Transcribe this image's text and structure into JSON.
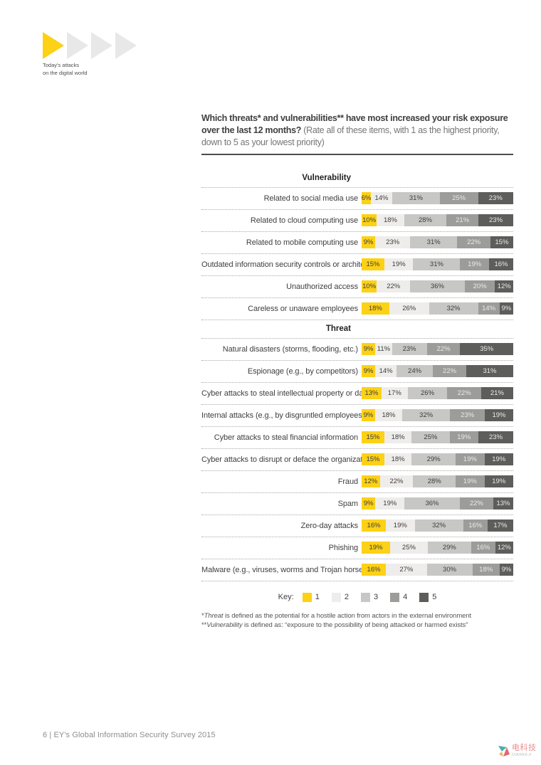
{
  "page": {
    "tagline": [
      "Today's attacks",
      "on the digital world"
    ],
    "footer": "6 | EY's Global Information Security Survey 2015"
  },
  "question": {
    "bold": "Which threats* and vulnerabilities** have most increased your risk exposure over the last 12 months?",
    "regular": " (Rate all of these items, with 1 as the highest priority, down to 5 as your lowest priority)"
  },
  "chart_data": {
    "type": "bar",
    "subtype": "horizontal-stacked-100percent",
    "unit": "%",
    "key": {
      "label": "Key:",
      "entries": [
        "1",
        "2",
        "3",
        "4",
        "5"
      ]
    },
    "segment_colors": [
      "#fcd116",
      "#eeedeb",
      "#c7c7c5",
      "#9c9c9a",
      "#5d5d5b"
    ],
    "segment_text_colors": [
      "#3d3d3d",
      "#3d3d3d",
      "#3d3d3d",
      "#eaeaea",
      "#eaeaea"
    ],
    "sections": [
      {
        "title": "Vulnerability",
        "rows": [
          {
            "label": "Related to social media use",
            "values": [
              6,
              14,
              31,
              25,
              23
            ]
          },
          {
            "label": "Related to cloud computing use",
            "values": [
              10,
              18,
              28,
              21,
              23
            ]
          },
          {
            "label": "Related to mobile computing use",
            "values": [
              9,
              23,
              31,
              22,
              15
            ]
          },
          {
            "label": "Outdated information security controls or architecture",
            "values": [
              15,
              19,
              31,
              19,
              16
            ]
          },
          {
            "label": "Unauthorized access",
            "values": [
              10,
              22,
              36,
              20,
              12
            ]
          },
          {
            "label": "Careless or unaware employees",
            "values": [
              18,
              26,
              32,
              14,
              9
            ]
          }
        ]
      },
      {
        "title": "Threat",
        "rows": [
          {
            "label": "Natural disasters (storms, flooding, etc.)",
            "values": [
              9,
              11,
              23,
              22,
              35
            ]
          },
          {
            "label": "Espionage (e.g., by competitors)",
            "values": [
              9,
              14,
              24,
              22,
              31
            ]
          },
          {
            "label": "Cyber attacks to steal intellectual property or data",
            "values": [
              13,
              17,
              26,
              22,
              21
            ]
          },
          {
            "label": "Internal attacks (e.g., by disgruntled employees)",
            "values": [
              9,
              18,
              32,
              23,
              19
            ]
          },
          {
            "label": "Cyber attacks to steal financial information",
            "values": [
              15,
              18,
              25,
              19,
              23
            ]
          },
          {
            "label": "Cyber attacks to disrupt or deface the organization",
            "values": [
              15,
              18,
              29,
              19,
              19
            ]
          },
          {
            "label": "Fraud",
            "values": [
              12,
              22,
              28,
              19,
              19
            ]
          },
          {
            "label": "Spam",
            "values": [
              9,
              19,
              36,
              22,
              13
            ]
          },
          {
            "label": "Zero-day attacks",
            "values": [
              16,
              19,
              32,
              16,
              17
            ]
          },
          {
            "label": "Phishing",
            "values": [
              19,
              25,
              29,
              16,
              12
            ]
          },
          {
            "label": "Malware (e.g., viruses, worms and Trojan horses)",
            "values": [
              16,
              27,
              30,
              18,
              9
            ]
          }
        ]
      }
    ]
  },
  "footnotes": [
    {
      "prefix": "*",
      "term": "Threat",
      "rest": " is defined as the potential for a hostile action from actors in the external environment"
    },
    {
      "prefix": "**",
      "term": "Vulnerability",
      "rest": " is defined as: “exposure to the possibility of being attacked or harmed exists”"
    }
  ],
  "brand": {
    "cn": "电科技",
    "en": "DIANKEJI"
  },
  "colors": {
    "accent_yellow": "#fcd116",
    "triangle_gray": "#e8e8e8",
    "rule_dark": "#4c4c4c"
  }
}
